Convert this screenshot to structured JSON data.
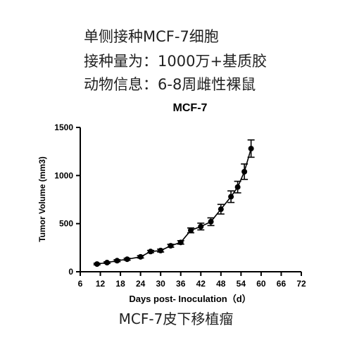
{
  "info_lines": [
    "单侧接种MCF-7细胞",
    "接种量为：1000万+基质胶",
    "动物信息：6-8周雌性裸鼠"
  ],
  "caption": "MCF-7皮下移植瘤",
  "chart_data": {
    "type": "line",
    "title": "MCF-7",
    "xlabel": "Days post- Inoculation（d）",
    "ylabel": "Tumor Volume (mm3)",
    "xlim": [
      6,
      72
    ],
    "ylim": [
      0,
      1500
    ],
    "x_ticks": [
      6,
      12,
      18,
      24,
      30,
      36,
      42,
      48,
      54,
      60,
      66,
      72
    ],
    "y_ticks": [
      0,
      500,
      1000,
      1500
    ],
    "error_bars": true,
    "line_color": "#000000",
    "series": [
      {
        "x": [
          11,
          14,
          17,
          20,
          24,
          27,
          30,
          33,
          36,
          39,
          42,
          45,
          48,
          51,
          53,
          55,
          57
        ],
        "y": [
          80,
          95,
          115,
          130,
          155,
          210,
          220,
          270,
          305,
          430,
          470,
          520,
          650,
          780,
          880,
          1040,
          1280
        ],
        "err": [
          8,
          8,
          10,
          10,
          12,
          12,
          15,
          15,
          18,
          25,
          35,
          40,
          50,
          60,
          60,
          80,
          90
        ]
      }
    ]
  }
}
